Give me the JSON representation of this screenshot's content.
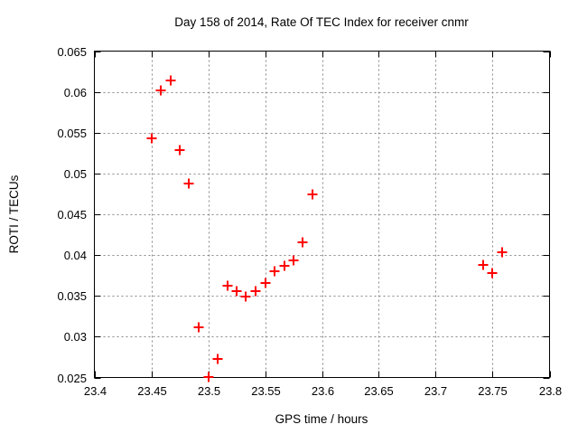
{
  "chart_data": {
    "type": "scatter",
    "title": "Day 158 of 2014, Rate Of TEC Index for receiver cnmr",
    "xlabel": "GPS time / hours",
    "ylabel": "ROTI / TECUs",
    "xlim": [
      23.4,
      23.8
    ],
    "ylim": [
      0.025,
      0.065
    ],
    "x_ticks": [
      23.4,
      23.45,
      23.5,
      23.55,
      23.6,
      23.65,
      23.7,
      23.75,
      23.8
    ],
    "x_tick_labels": [
      "23.4",
      "23.45",
      "23.5",
      "23.55",
      "23.6",
      "23.65",
      "23.7",
      "23.75",
      "23.8"
    ],
    "y_ticks": [
      0.025,
      0.03,
      0.035,
      0.04,
      0.045,
      0.05,
      0.055,
      0.06,
      0.065
    ],
    "y_tick_labels": [
      "0.025",
      "0.03",
      "0.035",
      "0.04",
      "0.045",
      "0.05",
      "0.055",
      "0.06",
      "0.065"
    ],
    "grid": true,
    "legend_position": "none",
    "marker": {
      "shape": "plus",
      "color": "#ff0000",
      "size": 11,
      "stroke_width": 2
    },
    "series": [
      {
        "name": "ROTI",
        "points": [
          [
            23.45,
            0.0543
          ],
          [
            23.4583,
            0.0602
          ],
          [
            23.4667,
            0.0614
          ],
          [
            23.475,
            0.0529
          ],
          [
            23.4833,
            0.0488
          ],
          [
            23.4917,
            0.0312
          ],
          [
            23.5,
            0.0251
          ],
          [
            23.5083,
            0.0273
          ],
          [
            23.5167,
            0.0363
          ],
          [
            23.525,
            0.0356
          ],
          [
            23.5333,
            0.0349
          ],
          [
            23.5417,
            0.0356
          ],
          [
            23.55,
            0.0366
          ],
          [
            23.5583,
            0.038
          ],
          [
            23.5667,
            0.0387
          ],
          [
            23.575,
            0.0393
          ],
          [
            23.5833,
            0.0416
          ],
          [
            23.5917,
            0.0474
          ],
          [
            23.7417,
            0.0388
          ],
          [
            23.75,
            0.0378
          ],
          [
            23.7583,
            0.0403
          ]
        ]
      }
    ]
  },
  "colors": {
    "background": "#ffffff",
    "axis": "#000000",
    "grid": "#888888",
    "marker": "#ff0000",
    "text": "#000000"
  }
}
